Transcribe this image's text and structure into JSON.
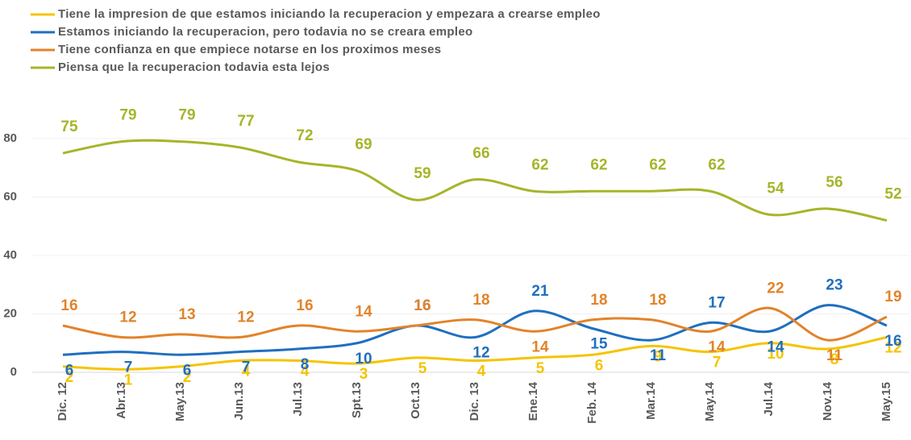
{
  "chart_data": {
    "type": "line",
    "categories": [
      "Dic. 12",
      "Abr.13",
      "May.13",
      "Jun.13",
      "Jul.13",
      "Spt.13",
      "Oct.13",
      "Dic. 13",
      "Ene.14",
      "Feb. 14",
      "Mar.14",
      "May.14",
      "Jul.14",
      "Nov.14",
      "May.15"
    ],
    "series": [
      {
        "name": "Tiene la impresion de que estamos iniciando la recuperacion y empezara a crearse empleo",
        "color": "#f5c400",
        "values": [
          2,
          1,
          2,
          4,
          4,
          3,
          5,
          4,
          5,
          6,
          9,
          7,
          10,
          8,
          12
        ]
      },
      {
        "name": "Estamos iniciando la recuperacion, pero todavia no se creara empleo",
        "color": "#1f6fbf",
        "values": [
          6,
          7,
          6,
          7,
          8,
          10,
          16,
          12,
          21,
          15,
          11,
          17,
          14,
          23,
          16
        ]
      },
      {
        "name": "Tiene confianza en que empiece notarse en los proximos meses",
        "color": "#e2832a",
        "values": [
          16,
          12,
          13,
          12,
          16,
          14,
          16,
          18,
          14,
          18,
          18,
          14,
          22,
          11,
          19
        ]
      },
      {
        "name": "Piensa que la recuperacion todavia esta lejos",
        "color": "#a6b52a",
        "values": [
          75,
          79,
          79,
          77,
          72,
          69,
          59,
          66,
          62,
          62,
          62,
          62,
          54,
          56,
          52
        ]
      }
    ],
    "ylim": [
      0,
      90
    ],
    "yticks": [
      0,
      20,
      40,
      60,
      80
    ],
    "grid": true,
    "legend": "top-left"
  }
}
